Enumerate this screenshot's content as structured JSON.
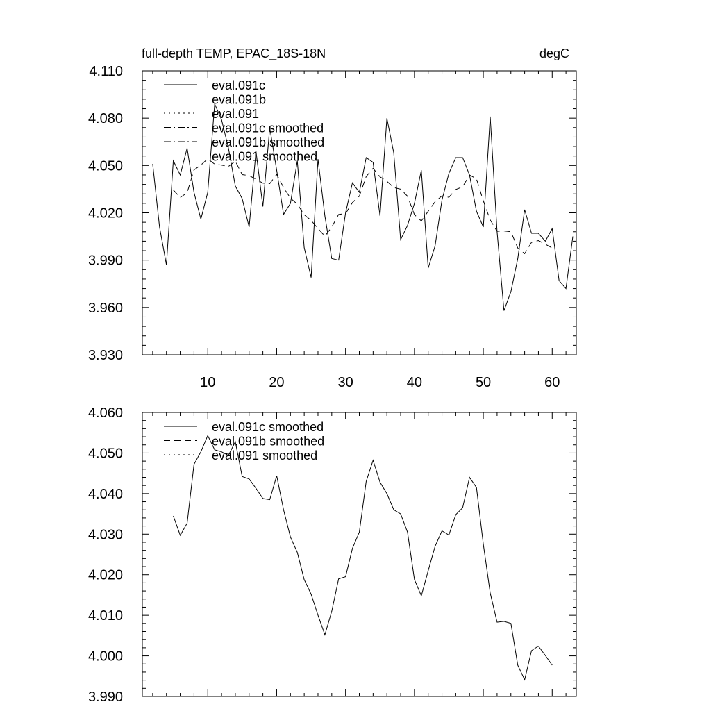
{
  "chart_data": [
    {
      "type": "line",
      "title_left": "full-depth TEMP, EPAC_18S-18N",
      "title_right": "degC",
      "xlabel": "",
      "ylabel": "",
      "xlim": [
        0.5,
        63.5
      ],
      "ylim": [
        3.93,
        4.11
      ],
      "yticks": [
        "3.930",
        "3.960",
        "3.990",
        "4.020",
        "4.050",
        "4.080",
        "4.110"
      ],
      "xticks": [
        "10",
        "20",
        "30",
        "40",
        "50",
        "60"
      ],
      "legend": [
        "eval.091c",
        "eval.091b",
        "eval.091",
        "eval.091c smoothed",
        "eval.091b smoothed",
        "eval.091 smoothed"
      ],
      "legend_position": "top-left",
      "series": [
        {
          "name": "eval.091c",
          "style": "solid",
          "x": [
            2,
            3,
            4,
            5,
            6,
            7,
            8,
            9,
            10,
            11,
            12,
            13,
            14,
            15,
            16,
            17,
            18,
            19,
            20,
            21,
            22,
            23,
            24,
            25,
            26,
            27,
            28,
            29,
            30,
            31,
            32,
            33,
            34,
            35,
            36,
            37,
            38,
            39,
            40,
            41,
            42,
            43,
            44,
            45,
            46,
            47,
            48,
            49,
            50,
            51,
            52,
            53,
            54,
            55,
            56,
            57,
            58,
            59,
            60,
            61,
            62,
            63
          ],
          "values": [
            4.051,
            4.011,
            3.987,
            4.053,
            4.044,
            4.061,
            4.033,
            4.016,
            4.033,
            4.089,
            4.079,
            4.061,
            4.037,
            4.029,
            4.011,
            4.059,
            4.024,
            4.074,
            4.047,
            4.019,
            4.026,
            4.053,
            3.998,
            3.979,
            4.054,
            4.018,
            3.991,
            3.99,
            4.02,
            4.039,
            4.033,
            4.055,
            4.052,
            4.018,
            4.08,
            4.058,
            4.003,
            4.012,
            4.026,
            4.047,
            3.985,
            3.999,
            4.028,
            4.045,
            4.055,
            4.055,
            4.044,
            4.021,
            4.011,
            4.081,
            4.008,
            3.958,
            3.97,
            3.991,
            4.022,
            4.007,
            4.007,
            4.002,
            4.01,
            3.977,
            3.972,
            4.005
          ]
        },
        {
          "name": "eval.091 smoothed",
          "style": "dashed",
          "x": [
            5,
            6,
            7,
            8,
            9,
            10,
            11,
            12,
            13,
            14,
            15,
            16,
            17,
            18,
            19,
            20,
            21,
            22,
            23,
            24,
            25,
            26,
            27,
            28,
            29,
            30,
            31,
            32,
            33,
            34,
            35,
            36,
            37,
            38,
            39,
            40,
            41,
            42,
            43,
            44,
            45,
            46,
            47,
            48,
            49,
            50,
            51,
            52,
            53,
            54,
            55,
            56,
            57,
            58,
            59,
            60
          ],
          "values": [
            4.0345,
            4.0297,
            4.0327,
            4.0472,
            4.0503,
            4.0543,
            4.0508,
            4.0503,
            4.0494,
            4.0528,
            4.0442,
            4.0436,
            4.0413,
            4.0388,
            4.0385,
            4.0444,
            4.036,
            4.0293,
            4.0255,
            4.0188,
            4.0152,
            4.01,
            4.0052,
            4.011,
            4.019,
            4.0195,
            4.0265,
            4.0305,
            4.043,
            4.0482,
            4.0428,
            4.04,
            4.036,
            4.035,
            4.0305,
            4.0188,
            4.0148,
            4.021,
            4.027,
            4.0308,
            4.0298,
            4.0348,
            4.0365,
            4.044,
            4.0415,
            4.0275,
            4.0155,
            4.0083,
            4.0085,
            4.008,
            3.9977,
            3.9941,
            4.0013,
            4.0024,
            4.0001,
            3.9977
          ]
        }
      ]
    },
    {
      "type": "line",
      "title": "",
      "xlabel": "",
      "ylabel": "",
      "xlim": [
        0.5,
        63.5
      ],
      "ylim": [
        3.99,
        4.06
      ],
      "yticks": [
        "3.990",
        "4.000",
        "4.010",
        "4.020",
        "4.030",
        "4.040",
        "4.050",
        "4.060"
      ],
      "xticks": [],
      "legend": [
        "eval.091c smoothed",
        "eval.091b smoothed",
        "eval.091 smoothed"
      ],
      "legend_position": "top-left",
      "series": [
        {
          "name": "eval.091c smoothed",
          "style": "solid",
          "x": [
            5,
            6,
            7,
            8,
            9,
            10,
            11,
            12,
            13,
            14,
            15,
            16,
            17,
            18,
            19,
            20,
            21,
            22,
            23,
            24,
            25,
            26,
            27,
            28,
            29,
            30,
            31,
            32,
            33,
            34,
            35,
            36,
            37,
            38,
            39,
            40,
            41,
            42,
            43,
            44,
            45,
            46,
            47,
            48,
            49,
            50,
            51,
            52,
            53,
            54,
            55,
            56,
            57,
            58,
            59,
            60
          ],
          "values": [
            4.0345,
            4.0297,
            4.0327,
            4.0472,
            4.0503,
            4.0543,
            4.0508,
            4.0503,
            4.0494,
            4.0528,
            4.0442,
            4.0436,
            4.0413,
            4.0388,
            4.0385,
            4.0444,
            4.036,
            4.0293,
            4.0255,
            4.0188,
            4.0152,
            4.01,
            4.0052,
            4.011,
            4.019,
            4.0195,
            4.0265,
            4.0305,
            4.043,
            4.0482,
            4.0428,
            4.04,
            4.036,
            4.035,
            4.0305,
            4.0188,
            4.0148,
            4.021,
            4.027,
            4.0308,
            4.0298,
            4.0348,
            4.0365,
            4.044,
            4.0415,
            4.0275,
            4.0155,
            4.0083,
            4.0085,
            4.008,
            3.9977,
            3.9941,
            4.0013,
            4.0024,
            4.0001,
            3.9977
          ]
        }
      ]
    }
  ]
}
